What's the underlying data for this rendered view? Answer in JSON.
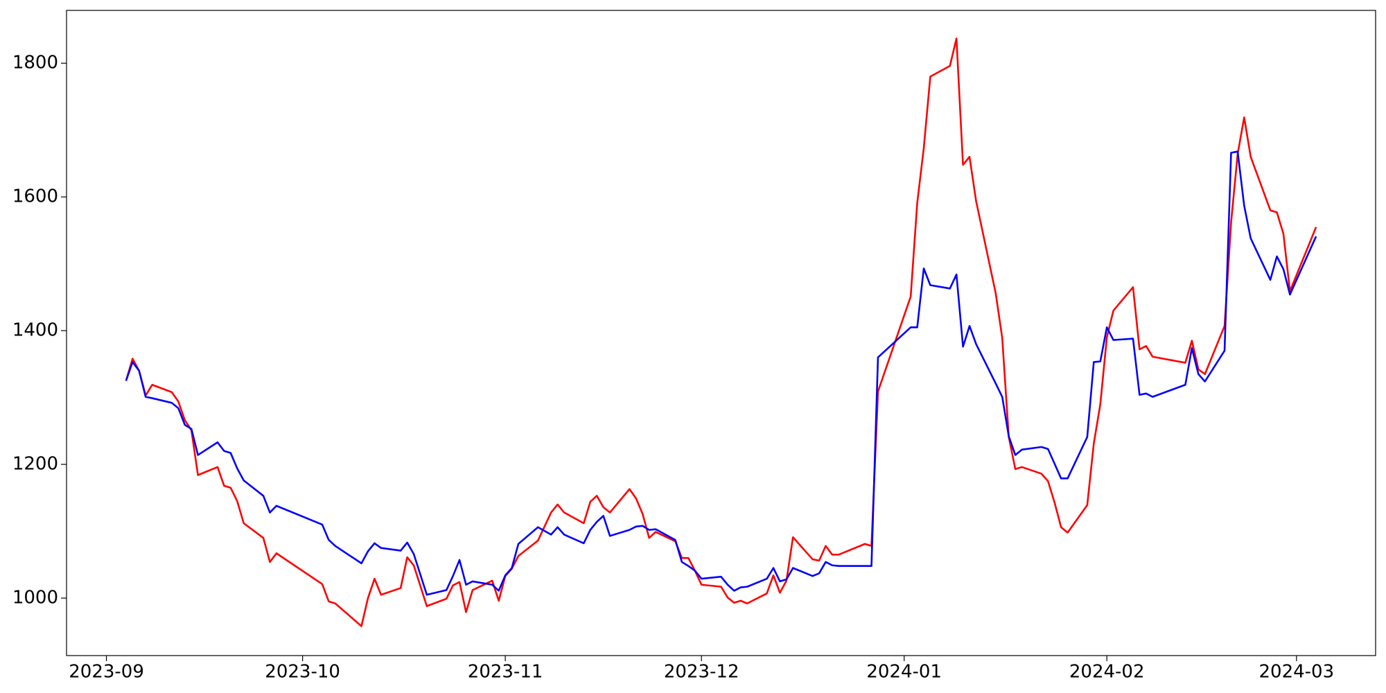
{
  "chart_data": {
    "type": "line",
    "x": [
      19604,
      19605,
      19606,
      19607,
      19608,
      19611,
      19612,
      19613,
      19614,
      19615,
      19618,
      19619,
      19620,
      19621,
      19622,
      19625,
      19626,
      19627,
      19634,
      19635,
      19636,
      19640,
      19641,
      19642,
      19643,
      19646,
      19647,
      19648,
      19650,
      19653,
      19654,
      19655,
      19656,
      19657,
      19660,
      19661,
      19662,
      19663,
      19664,
      19667,
      19669,
      19670,
      19671,
      19674,
      19675,
      19676,
      19677,
      19678,
      19681,
      19682,
      19683,
      19684,
      19685,
      19688,
      19689,
      19690,
      19691,
      19692,
      19695,
      19696,
      19697,
      19698,
      19699,
      19702,
      19703,
      19704,
      19705,
      19706,
      19709,
      19710,
      19711,
      19712,
      19713,
      19717,
      19718,
      19719,
      19724,
      19725,
      19726,
      19727,
      19730,
      19731,
      19732,
      19733,
      19734,
      19737,
      19738,
      19739,
      19740,
      19741,
      19744,
      19745,
      19746,
      19747,
      19748,
      19751,
      19752,
      19753,
      19754,
      19755,
      19758,
      19759,
      19760,
      19761,
      19766,
      19767,
      19768,
      19769,
      19772,
      19773,
      19774,
      19775,
      19776,
      19779,
      19780,
      19781,
      19782,
      19786
    ],
    "series": [
      {
        "color": "#ff0000",
        "values": [
          1325,
          1358,
          1340,
          1303,
          1319,
          1308,
          1294,
          1266,
          1251,
          1184,
          1196,
          1168,
          1165,
          1145,
          1112,
          1090,
          1054,
          1067,
          1021,
          995,
          992,
          958,
          1000,
          1029,
          1005,
          1015,
          1061,
          1049,
          988,
          999,
          1019,
          1024,
          979,
          1012,
          1026,
          996,
          1033,
          1044,
          1063,
          1086,
          1128,
          1140,
          1128,
          1112,
          1144,
          1153,
          1136,
          1128,
          1163,
          1149,
          1126,
          1090,
          1099,
          1085,
          1060,
          1060,
          1041,
          1020,
          1017,
          1001,
          993,
          996,
          992,
          1007,
          1034,
          1008,
          1026,
          1091,
          1058,
          1056,
          1078,
          1065,
          1065,
          1081,
          1078,
          1309,
          1451,
          1591,
          1673,
          1780,
          1796,
          1837,
          1648,
          1660,
          1594,
          1456,
          1389,
          1241,
          1193,
          1196,
          1186,
          1175,
          1143,
          1106,
          1098,
          1139,
          1231,
          1290,
          1390,
          1430,
          1465,
          1372,
          1377,
          1361,
          1352,
          1385,
          1342,
          1335,
          1407,
          1562,
          1664,
          1719,
          1660,
          1580,
          1577,
          1545,
          1459,
          1555
        ]
      },
      {
        "color": "#0000ff",
        "values": [
          1325,
          1353,
          1340,
          1301,
          1299,
          1292,
          1284,
          1259,
          1253,
          1214,
          1233,
          1220,
          1217,
          1194,
          1176,
          1153,
          1128,
          1138,
          1110,
          1087,
          1078,
          1052,
          1070,
          1082,
          1075,
          1071,
          1083,
          1066,
          1005,
          1012,
          1033,
          1057,
          1020,
          1025,
          1020,
          1011,
          1034,
          1045,
          1081,
          1106,
          1095,
          1106,
          1095,
          1082,
          1102,
          1114,
          1123,
          1093,
          1102,
          1107,
          1108,
          1102,
          1103,
          1087,
          1054,
          1048,
          1041,
          1029,
          1032,
          1020,
          1011,
          1016,
          1017,
          1029,
          1045,
          1025,
          1028,
          1045,
          1033,
          1037,
          1054,
          1049,
          1048,
          1048,
          1048,
          1360,
          1405,
          1405,
          1493,
          1468,
          1463,
          1484,
          1376,
          1407,
          1380,
          1321,
          1301,
          1242,
          1214,
          1222,
          1226,
          1223,
          1201,
          1179,
          1179,
          1241,
          1353,
          1354,
          1405,
          1386,
          1388,
          1304,
          1306,
          1301,
          1319,
          1374,
          1335,
          1324,
          1370,
          1666,
          1668,
          1587,
          1538,
          1476,
          1511,
          1492,
          1454,
          1541
        ]
      }
    ],
    "xlim": [
      19594.9,
      19795.1
    ],
    "xticks": [
      {
        "value": 19601,
        "label": "2023-09"
      },
      {
        "value": 19631,
        "label": "2023-10"
      },
      {
        "value": 19662,
        "label": "2023-11"
      },
      {
        "value": 19692,
        "label": "2023-12"
      },
      {
        "value": 19723,
        "label": "2024-01"
      },
      {
        "value": 19754,
        "label": "2024-02"
      },
      {
        "value": 19783,
        "label": "2024-03"
      }
    ],
    "ylim": [
      914,
      1879
    ],
    "yticks": [
      1000,
      1200,
      1400,
      1600,
      1800
    ]
  }
}
